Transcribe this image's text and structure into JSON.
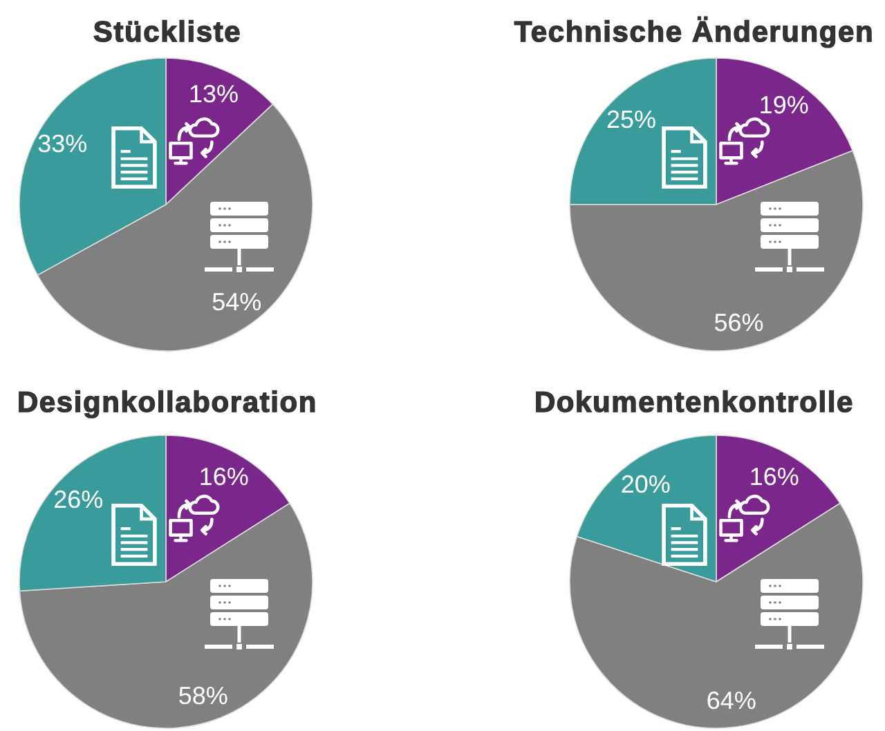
{
  "chart_data": [
    {
      "type": "pie",
      "title": "Stückliste",
      "categories": [
        null,
        null,
        null
      ],
      "values": [
        13,
        54,
        33
      ],
      "value_labels": [
        "13%",
        "54%",
        "33%"
      ],
      "colors": [
        "#7a268a",
        "#808080",
        "#3a9b9b"
      ]
    },
    {
      "type": "pie",
      "title": "Technische Änderungen",
      "categories": [
        null,
        null,
        null
      ],
      "values": [
        19,
        56,
        25
      ],
      "value_labels": [
        "19%",
        "56%",
        "25%"
      ],
      "colors": [
        "#7a268a",
        "#808080",
        "#3a9b9b"
      ]
    },
    {
      "type": "pie",
      "title": "Designkollaboration",
      "categories": [
        null,
        null,
        null
      ],
      "values": [
        16,
        58,
        26
      ],
      "value_labels": [
        "16%",
        "58%",
        "26%"
      ],
      "colors": [
        "#7a268a",
        "#808080",
        "#3a9b9b"
      ]
    },
    {
      "type": "pie",
      "title": "Dokumentenkontrolle",
      "categories": [
        null,
        null,
        null
      ],
      "values": [
        16,
        64,
        20
      ],
      "value_labels": [
        "16%",
        "64%",
        "20%"
      ],
      "colors": [
        "#7a268a",
        "#808080",
        "#3a9b9b"
      ]
    }
  ]
}
